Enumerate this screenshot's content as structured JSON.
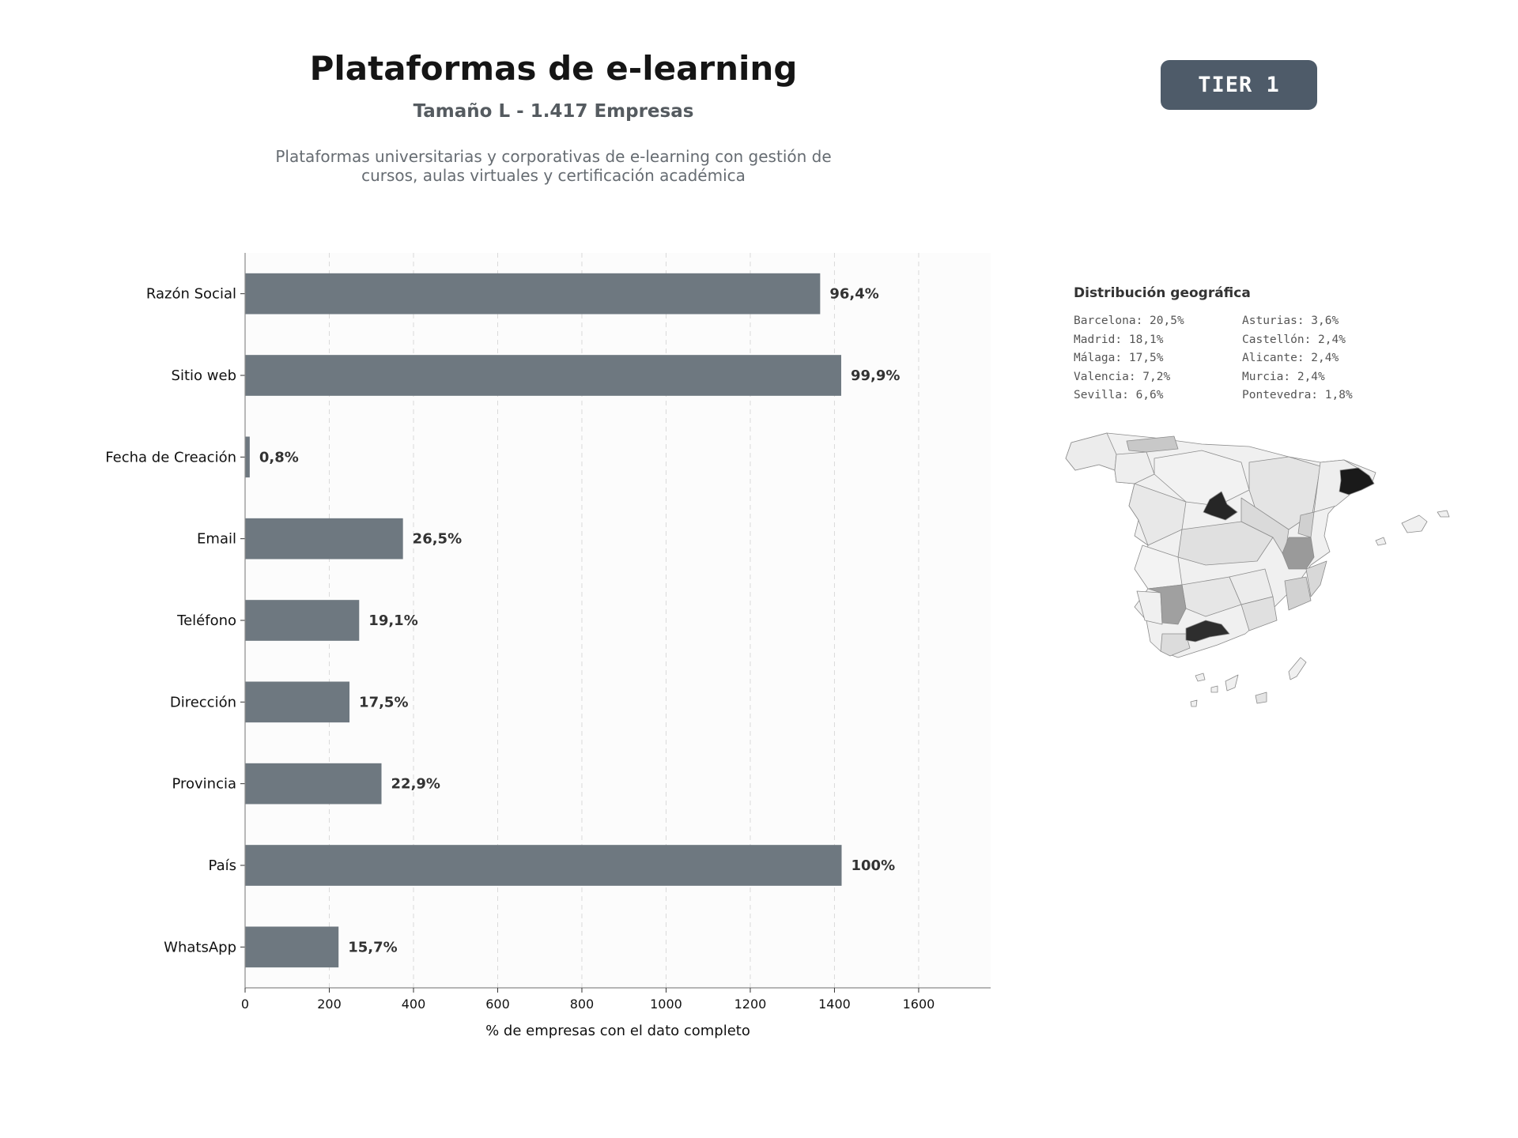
{
  "header": {
    "title": "Plataformas de e-learning",
    "subtitle": "Tamaño L - 1.417 Empresas",
    "description_line1": "Plataformas universitarias y corporativas de e-learning con gestión de",
    "description_line2": "cursos, aulas virtuales y certificación académica",
    "tier_badge": "TIER 1"
  },
  "chart_data": {
    "type": "bar",
    "orientation": "horizontal",
    "categories": [
      "Razón Social",
      "Sitio web",
      "Fecha de Creación",
      "Email",
      "Teléfono",
      "Dirección",
      "Provincia",
      "País",
      "WhatsApp"
    ],
    "values": [
      1366,
      1416,
      11,
      375,
      271,
      248,
      324,
      1417,
      222
    ],
    "data_labels": [
      "96,4%",
      "99,9%",
      "0,8%",
      "26,5%",
      "19,1%",
      "17,5%",
      "22,9%",
      "100%",
      "15,7%"
    ],
    "xlabel": "% de empresas con el dato completo",
    "ylabel": "",
    "xlim": [
      0,
      1771
    ],
    "xticks": [
      0,
      200,
      400,
      600,
      800,
      1000,
      1200,
      1400,
      1600
    ],
    "grid": "vertical-dashed",
    "bar_color": "#6e7880"
  },
  "geo": {
    "title": "Distribución geográfica",
    "items": [
      "Barcelona: 20,5%",
      "Asturias: 3,6%",
      "Madrid: 18,1%",
      "Castellón: 2,4%",
      "Málaga: 17,5%",
      "Alicante: 2,4%",
      "Valencia: 7,2%",
      "Murcia: 2,4%",
      "Sevilla: 6,6%",
      "Pontevedra: 1,8%"
    ]
  },
  "colors": {
    "bar": "#6e7880",
    "badge": "#4e5b69",
    "map_high": "#1c1c1c",
    "map_mid": "#9a9a9a",
    "map_low": "#e2e2e2"
  }
}
